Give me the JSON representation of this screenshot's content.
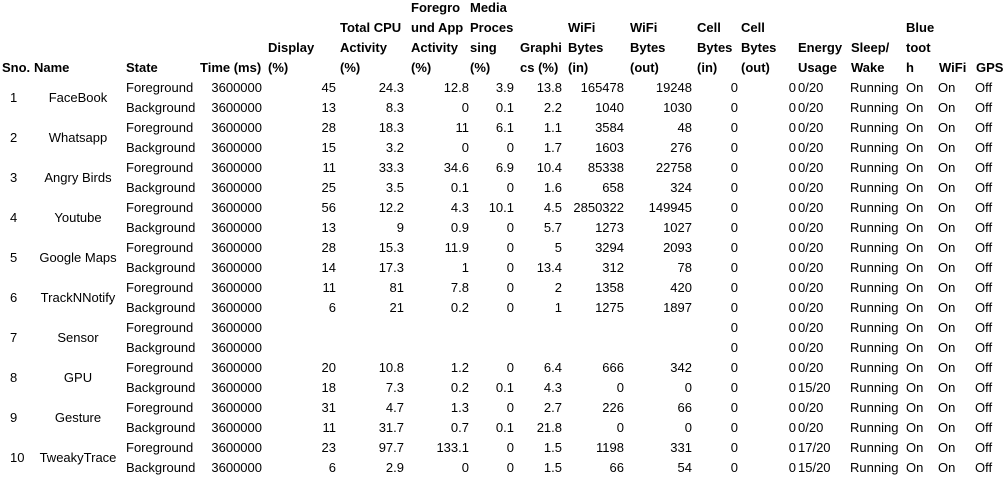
{
  "headers": [
    {
      "key": "sno",
      "lines": [
        "Sno."
      ]
    },
    {
      "key": "name",
      "lines": [
        "Name"
      ]
    },
    {
      "key": "state",
      "lines": [
        "State"
      ]
    },
    {
      "key": "time",
      "lines": [
        "Time (ms)"
      ]
    },
    {
      "key": "display",
      "lines": [
        "Display",
        "(%)"
      ]
    },
    {
      "key": "cpu",
      "lines": [
        "Total CPU",
        "Activity",
        "(%)"
      ]
    },
    {
      "key": "fgapp",
      "lines": [
        "Foregro",
        "und App",
        "Activity",
        "(%)"
      ]
    },
    {
      "key": "media",
      "lines": [
        "Media",
        "Proces",
        "sing",
        "(%)"
      ]
    },
    {
      "key": "gfx",
      "lines": [
        "Graphi",
        "cs (%)"
      ]
    },
    {
      "key": "wifi_in",
      "lines": [
        "WiFi",
        "Bytes",
        "(in)"
      ]
    },
    {
      "key": "wifi_out",
      "lines": [
        "WiFi",
        "Bytes",
        "(out)"
      ]
    },
    {
      "key": "cell_in",
      "lines": [
        "Cell",
        "Bytes",
        "(in)"
      ]
    },
    {
      "key": "cell_out",
      "lines": [
        "Cell",
        "Bytes",
        "(out)"
      ]
    },
    {
      "key": "energy",
      "lines": [
        "Energy",
        "Usage"
      ]
    },
    {
      "key": "sleep",
      "lines": [
        "Sleep/",
        "Wake"
      ]
    },
    {
      "key": "bt",
      "lines": [
        "Blue",
        "toot",
        "h"
      ]
    },
    {
      "key": "wifi",
      "lines": [
        "WiFi"
      ]
    },
    {
      "key": "gps",
      "lines": [
        "GPS"
      ]
    }
  ],
  "apps": [
    {
      "sno": "1",
      "name": "FaceBook",
      "rows": [
        {
          "state": "Foreground",
          "time": "3600000",
          "display": "45",
          "cpu": "24.3",
          "fgapp": "12.8",
          "media": "3.9",
          "gfx": "13.8",
          "wifi_in": "165478",
          "wifi_out": "19248",
          "cell_in": "0",
          "cell_out": "0",
          "energy": "0/20",
          "sleep": "Running",
          "bt": "On",
          "wifi": "On",
          "gps": "Off"
        },
        {
          "state": "Background",
          "time": "3600000",
          "display": "13",
          "cpu": "8.3",
          "fgapp": "0",
          "media": "0.1",
          "gfx": "2.2",
          "wifi_in": "1040",
          "wifi_out": "1030",
          "cell_in": "0",
          "cell_out": "0",
          "energy": "0/20",
          "sleep": "Running",
          "bt": "On",
          "wifi": "On",
          "gps": "Off"
        }
      ]
    },
    {
      "sno": "2",
      "name": "Whatsapp",
      "rows": [
        {
          "state": "Foreground",
          "time": "3600000",
          "display": "28",
          "cpu": "18.3",
          "fgapp": "11",
          "media": "6.1",
          "gfx": "1.1",
          "wifi_in": "3584",
          "wifi_out": "48",
          "cell_in": "0",
          "cell_out": "0",
          "energy": "0/20",
          "sleep": "Running",
          "bt": "On",
          "wifi": "On",
          "gps": "Off"
        },
        {
          "state": "Background",
          "time": "3600000",
          "display": "15",
          "cpu": "3.2",
          "fgapp": "0",
          "media": "0",
          "gfx": "1.7",
          "wifi_in": "1603",
          "wifi_out": "276",
          "cell_in": "0",
          "cell_out": "0",
          "energy": "0/20",
          "sleep": "Running",
          "bt": "On",
          "wifi": "On",
          "gps": "Off"
        }
      ]
    },
    {
      "sno": "3",
      "name": "Angry Birds",
      "rows": [
        {
          "state": "Foreground",
          "time": "3600000",
          "display": "11",
          "cpu": "33.3",
          "fgapp": "34.6",
          "media": "6.9",
          "gfx": "10.4",
          "wifi_in": "85338",
          "wifi_out": "22758",
          "cell_in": "0",
          "cell_out": "0",
          "energy": "0/20",
          "sleep": "Running",
          "bt": "On",
          "wifi": "On",
          "gps": "Off"
        },
        {
          "state": "Background",
          "time": "3600000",
          "display": "25",
          "cpu": "3.5",
          "fgapp": "0.1",
          "media": "0",
          "gfx": "1.6",
          "wifi_in": "658",
          "wifi_out": "324",
          "cell_in": "0",
          "cell_out": "0",
          "energy": "0/20",
          "sleep": "Running",
          "bt": "On",
          "wifi": "On",
          "gps": "Off"
        }
      ]
    },
    {
      "sno": "4",
      "name": "Youtube",
      "rows": [
        {
          "state": "Foreground",
          "time": "3600000",
          "display": "56",
          "cpu": "12.2",
          "fgapp": "4.3",
          "media": "10.1",
          "gfx": "4.5",
          "wifi_in": "2850322",
          "wifi_out": "149945",
          "cell_in": "0",
          "cell_out": "0",
          "energy": "0/20",
          "sleep": "Running",
          "bt": "On",
          "wifi": "On",
          "gps": "Off"
        },
        {
          "state": "Background",
          "time": "3600000",
          "display": "13",
          "cpu": "9",
          "fgapp": "0.9",
          "media": "0",
          "gfx": "5.7",
          "wifi_in": "1273",
          "wifi_out": "1027",
          "cell_in": "0",
          "cell_out": "0",
          "energy": "0/20",
          "sleep": "Running",
          "bt": "On",
          "wifi": "On",
          "gps": "Off"
        }
      ]
    },
    {
      "sno": "5",
      "name": "Google Maps",
      "rows": [
        {
          "state": "Foreground",
          "time": "3600000",
          "display": "28",
          "cpu": "15.3",
          "fgapp": "11.9",
          "media": "0",
          "gfx": "5",
          "wifi_in": "3294",
          "wifi_out": "2093",
          "cell_in": "0",
          "cell_out": "0",
          "energy": "0/20",
          "sleep": "Running",
          "bt": "On",
          "wifi": "On",
          "gps": "Off"
        },
        {
          "state": "Background",
          "time": "3600000",
          "display": "14",
          "cpu": "17.3",
          "fgapp": "1",
          "media": "0",
          "gfx": "13.4",
          "wifi_in": "312",
          "wifi_out": "78",
          "cell_in": "0",
          "cell_out": "0",
          "energy": "0/20",
          "sleep": "Running",
          "bt": "On",
          "wifi": "On",
          "gps": "Off"
        }
      ]
    },
    {
      "sno": "6",
      "name": "TrackNNotify",
      "rows": [
        {
          "state": "Foreground",
          "time": "3600000",
          "display": "11",
          "cpu": "81",
          "fgapp": "7.8",
          "media": "0",
          "gfx": "2",
          "wifi_in": "1358",
          "wifi_out": "420",
          "cell_in": "0",
          "cell_out": "0",
          "energy": "0/20",
          "sleep": "Running",
          "bt": "On",
          "wifi": "On",
          "gps": "Off"
        },
        {
          "state": "Background",
          "time": "3600000",
          "display": "6",
          "cpu": "21",
          "fgapp": "0.2",
          "media": "0",
          "gfx": "1",
          "wifi_in": "1275",
          "wifi_out": "1897",
          "cell_in": "0",
          "cell_out": "0",
          "energy": "0/20",
          "sleep": "Running",
          "bt": "On",
          "wifi": "On",
          "gps": "Off"
        }
      ]
    },
    {
      "sno": "7",
      "name": "Sensor",
      "rows": [
        {
          "state": "Foreground",
          "time": "3600000",
          "display": "",
          "cpu": "",
          "fgapp": "",
          "media": "",
          "gfx": "",
          "wifi_in": "",
          "wifi_out": "",
          "cell_in": "0",
          "cell_out": "0",
          "energy": "0/20",
          "sleep": "Running",
          "bt": "On",
          "wifi": "On",
          "gps": "Off"
        },
        {
          "state": "Background",
          "time": "3600000",
          "display": "",
          "cpu": "",
          "fgapp": "",
          "media": "",
          "gfx": "",
          "wifi_in": "",
          "wifi_out": "",
          "cell_in": "0",
          "cell_out": "0",
          "energy": "0/20",
          "sleep": "Running",
          "bt": "On",
          "wifi": "On",
          "gps": "Off"
        }
      ]
    },
    {
      "sno": "8",
      "name": "GPU",
      "rows": [
        {
          "state": "Foreground",
          "time": "3600000",
          "display": "20",
          "cpu": "10.8",
          "fgapp": "1.2",
          "media": "0",
          "gfx": "6.4",
          "wifi_in": "666",
          "wifi_out": "342",
          "cell_in": "0",
          "cell_out": "0",
          "energy": "0/20",
          "sleep": "Running",
          "bt": "On",
          "wifi": "On",
          "gps": "Off"
        },
        {
          "state": "Background",
          "time": "3600000",
          "display": "18",
          "cpu": "7.3",
          "fgapp": "0.2",
          "media": "0.1",
          "gfx": "4.3",
          "wifi_in": "0",
          "wifi_out": "0",
          "cell_in": "0",
          "cell_out": "0",
          "energy": "15/20",
          "sleep": "Running",
          "bt": "On",
          "wifi": "On",
          "gps": "Off"
        }
      ]
    },
    {
      "sno": "9",
      "name": "Gesture",
      "rows": [
        {
          "state": "Foreground",
          "time": "3600000",
          "display": "31",
          "cpu": "4.7",
          "fgapp": "1.3",
          "media": "0",
          "gfx": "2.7",
          "wifi_in": "226",
          "wifi_out": "66",
          "cell_in": "0",
          "cell_out": "0",
          "energy": "0/20",
          "sleep": "Running",
          "bt": "On",
          "wifi": "On",
          "gps": "Off"
        },
        {
          "state": "Background",
          "time": "3600000",
          "display": "11",
          "cpu": "31.7",
          "fgapp": "0.7",
          "media": "0.1",
          "gfx": "21.8",
          "wifi_in": "0",
          "wifi_out": "0",
          "cell_in": "0",
          "cell_out": "0",
          "energy": "0/20",
          "sleep": "Running",
          "bt": "On",
          "wifi": "On",
          "gps": "Off"
        }
      ]
    },
    {
      "sno": "10",
      "name": "TweakyTrace",
      "rows": [
        {
          "state": "Foreground",
          "time": "3600000",
          "display": "23",
          "cpu": "97.7",
          "fgapp": "133.1",
          "media": "0",
          "gfx": "1.5",
          "wifi_in": "1198",
          "wifi_out": "331",
          "cell_in": "0",
          "cell_out": "0",
          "energy": "17/20",
          "sleep": "Running",
          "bt": "On",
          "wifi": "On",
          "gps": "Off"
        },
        {
          "state": "Background",
          "time": "3600000",
          "display": "6",
          "cpu": "2.9",
          "fgapp": "0",
          "media": "0",
          "gfx": "1.5",
          "wifi_in": "66",
          "wifi_out": "54",
          "cell_in": "0",
          "cell_out": "0",
          "energy": "15/20",
          "sleep": "Running",
          "bt": "On",
          "wifi": "On",
          "gps": "Off"
        }
      ]
    }
  ]
}
